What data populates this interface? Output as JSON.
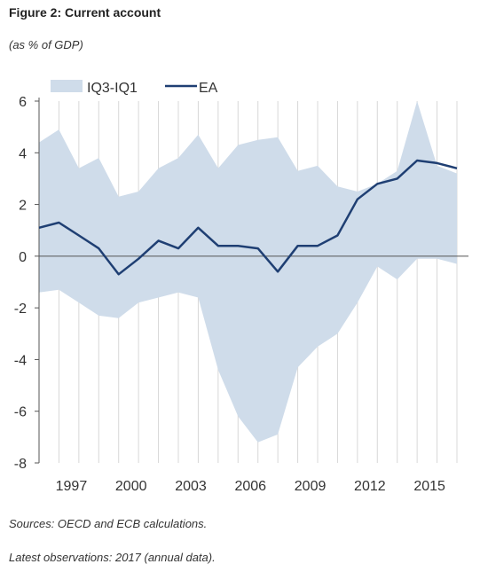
{
  "header": {
    "title": "Figure 2: Current account",
    "subtitle": "(as % of GDP)"
  },
  "footer": {
    "sources": "Sources: OECD and ECB calculations.",
    "latest": "Latest observations: 2017 (annual data)."
  },
  "chart_data": {
    "type": "line",
    "title": "Figure 2: Current account",
    "subtitle": "(as % of GDP)",
    "xlabel": "",
    "ylabel": "",
    "ylim": [
      -8,
      6
    ],
    "xlim": [
      1996,
      2017
    ],
    "grid": "vertical",
    "legend_position": "top-left",
    "y_ticks": [
      "6",
      "4",
      "2",
      "0",
      "-2",
      "-4",
      "-6",
      "-8"
    ],
    "y_tick_values": [
      6,
      4,
      2,
      0,
      -2,
      -4,
      -6,
      -8
    ],
    "x_ticks": [
      "1997",
      "2000",
      "2003",
      "2006",
      "2009",
      "2012",
      "2015"
    ],
    "x_tick_values": [
      1997,
      2000,
      2003,
      2006,
      2009,
      2012,
      2015
    ],
    "x": [
      1996,
      1997,
      1998,
      1999,
      2000,
      2001,
      2002,
      2003,
      2004,
      2005,
      2006,
      2007,
      2008,
      2009,
      2010,
      2011,
      2012,
      2013,
      2014,
      2015,
      2016,
      2017
    ],
    "series": [
      {
        "name": "IQ3-IQ1",
        "kind": "band",
        "color": "#cfdcea",
        "upper": [
          4.4,
          4.9,
          3.4,
          3.8,
          2.3,
          2.5,
          3.4,
          3.8,
          4.7,
          3.4,
          4.3,
          4.5,
          4.6,
          3.3,
          3.5,
          2.7,
          2.5,
          2.8,
          3.3,
          6.0,
          3.5,
          3.2
        ],
        "lower": [
          -1.4,
          -1.3,
          -1.8,
          -2.3,
          -2.4,
          -1.8,
          -1.6,
          -1.4,
          -1.6,
          -4.4,
          -6.2,
          -7.2,
          -6.9,
          -4.3,
          -3.5,
          -3.0,
          -1.8,
          -0.4,
          -0.9,
          -0.1,
          -0.1,
          -0.3
        ]
      },
      {
        "name": "EA",
        "kind": "line",
        "color": "#1f3f73",
        "values": [
          1.1,
          1.3,
          0.8,
          0.3,
          -0.7,
          -0.1,
          0.6,
          0.3,
          1.1,
          0.4,
          0.4,
          0.3,
          -0.6,
          0.4,
          0.4,
          0.8,
          2.2,
          2.8,
          3.0,
          3.7,
          3.6,
          3.4
        ]
      }
    ]
  }
}
